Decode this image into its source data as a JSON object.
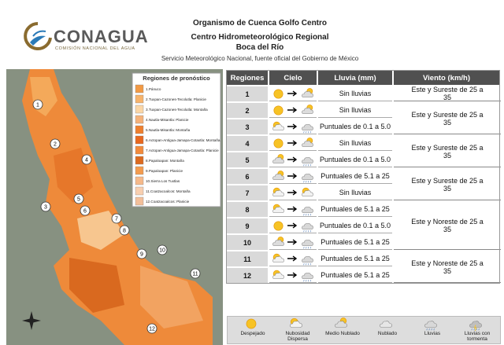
{
  "header": {
    "organization": "Organismo de Cuenca Golfo Centro",
    "center": "Centro Hidrometeorológico Regional",
    "location": "Boca del Río",
    "source": "Servicio Meteorológico Nacional, fuente oficial del Gobierno de México"
  },
  "logo": {
    "name": "CONAGUA",
    "subtitle": "COMISIÓN NACIONAL DEL AGUA"
  },
  "map": {
    "legend_title": "Regiones de pronóstico",
    "legend": [
      "1.Pánuco",
      "2.Tuxpan-Cazones-Tecolutla: Planicie",
      "3.Tuxpan-Cazones-Tecolutla: Montaña",
      "4.Nautla-Misantla: Planicie",
      "5.Nautla-Misantla: Montaña",
      "6.Actopan-Antigua-Jamapa-Cotaxtla: Montaña",
      "7.Actopan-Antigua-Jamapa-Cotaxtla: Planicie",
      "8.Papaloapan: Montaña",
      "9.Papaloapan: Planicie",
      "10.Sierra Los Tuxtlas",
      "11.Coatzacoalcos: Montaña",
      "12.Coatzacoalcos: Planicie"
    ],
    "markers": [
      "1",
      "2",
      "3",
      "4",
      "5",
      "6",
      "7",
      "8",
      "9",
      "10",
      "11",
      "12"
    ]
  },
  "table": {
    "columns": [
      "Regiones",
      "Cielo",
      "Lluvia (mm)",
      "Viento (km/h)"
    ],
    "rows": [
      {
        "region": "1",
        "lluvia": "Sin lluvias"
      },
      {
        "region": "2",
        "lluvia": "Sin lluvias"
      },
      {
        "region": "3",
        "lluvia": "Puntuales de 0.1 a 5.0"
      },
      {
        "region": "4",
        "lluvia": "Sin lluvias"
      },
      {
        "region": "5",
        "lluvia": "Puntuales de 0.1 a 5.0"
      },
      {
        "region": "6",
        "lluvia": "Puntuales de 5.1 a 25"
      },
      {
        "region": "7",
        "lluvia": "Sin lluvias"
      },
      {
        "region": "8",
        "lluvia": "Puntuales de 5.1 a 25"
      },
      {
        "region": "9",
        "lluvia": "Puntuales de 0.1 a 5.0"
      },
      {
        "region": "10",
        "lluvia": "Puntuales de 5.1 a 25"
      },
      {
        "region": "11",
        "lluvia": "Puntuales de 5.1 a 25"
      },
      {
        "region": "12",
        "lluvia": "Puntuales de 5.1 a 25"
      }
    ],
    "viento": [
      "Este y Sureste de 25 a 35",
      "Este y Sureste de 25 a 35",
      "Este y Sureste de 25 a 35",
      "Este y Sureste de 25 a 35",
      "Este y Noreste de 25 a 35",
      "Este y Noreste de 25 a 35"
    ]
  },
  "sky_legend": [
    "Despejado",
    "Nubosidad Dispersa",
    "Medio Nublado",
    "Nublado",
    "Lluvias",
    "Lluvias con tormenta"
  ]
}
